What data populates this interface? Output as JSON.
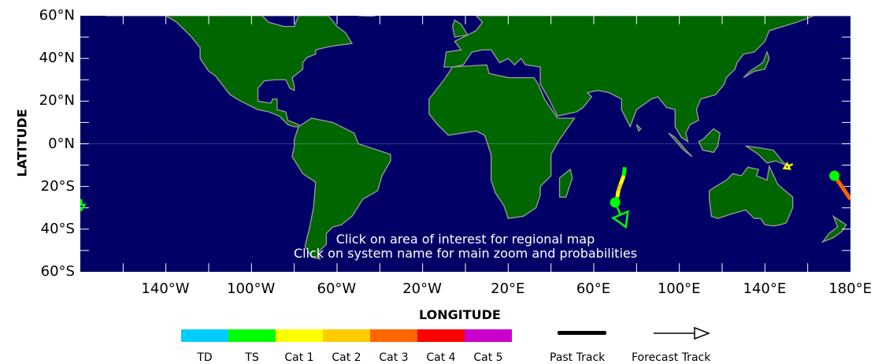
{
  "axes": {
    "ylabel": "LATITUDE",
    "xlabel": "LONGITUDE",
    "lat_ticks": [
      "60°N",
      "40°N",
      "20°N",
      "0°N",
      "20°S",
      "40°S",
      "60°S"
    ],
    "lon_ticks": [
      "140°W",
      "100°W",
      "60°W",
      "20°W",
      "20°E",
      "60°E",
      "100°E",
      "140°E",
      "180°E"
    ],
    "lon_range": [
      -180,
      180
    ],
    "lat_range": [
      -60,
      60
    ]
  },
  "colors": {
    "ocean": "#000066",
    "land": "#006600",
    "coast": "#999999",
    "equator": "#aaccff"
  },
  "instructions": [
    "Click on area of interest for regional map",
    "Click on system name for main zoom and probabilities"
  ],
  "legend": {
    "categories": [
      {
        "label": "TD",
        "color": "#00ccff"
      },
      {
        "label": "TS",
        "color": "#00ff00"
      },
      {
        "label": "Cat 1",
        "color": "#ffff00"
      },
      {
        "label": "Cat 2",
        "color": "#ffcc00"
      },
      {
        "label": "Cat 3",
        "color": "#ff6600"
      },
      {
        "label": "Cat 4",
        "color": "#ff0000"
      },
      {
        "label": "Cat 5",
        "color": "#cc00cc"
      }
    ],
    "past_track": "Past Track",
    "forecast_track": "Forecast Track"
  },
  "storms": [
    {
      "past": [
        [
          -11,
          74.5,
          "#00ff00"
        ],
        [
          -15,
          74,
          "#00ff00"
        ],
        [
          -19,
          72.5,
          "#ffff00"
        ],
        [
          -22,
          71.5,
          "#ffcc00"
        ],
        [
          -25,
          71,
          "#ffff00"
        ],
        [
          -27.5,
          70,
          "#00ff00"
        ]
      ],
      "current": [
        -27.5,
        70
      ],
      "forecast_to": [
        -39,
        75
      ],
      "color": "#00ff00"
    },
    {
      "past": [],
      "current": [
        -9.5,
        153
      ],
      "forecast_to": [
        -11.5,
        149
      ],
      "color": "#ffff00"
    },
    {
      "past": [
        [
          -15,
          172.5,
          "#ffcc00"
        ],
        [
          -26,
          180,
          "#ff6600"
        ]
      ],
      "current": [
        -15,
        172.5
      ],
      "forecast_to": null,
      "color": "#00ff00"
    },
    {
      "past": [],
      "current": [
        -26,
        -179.5
      ],
      "forecast_to": [
        -31,
        -179.5
      ],
      "color": "#00ff00"
    }
  ]
}
